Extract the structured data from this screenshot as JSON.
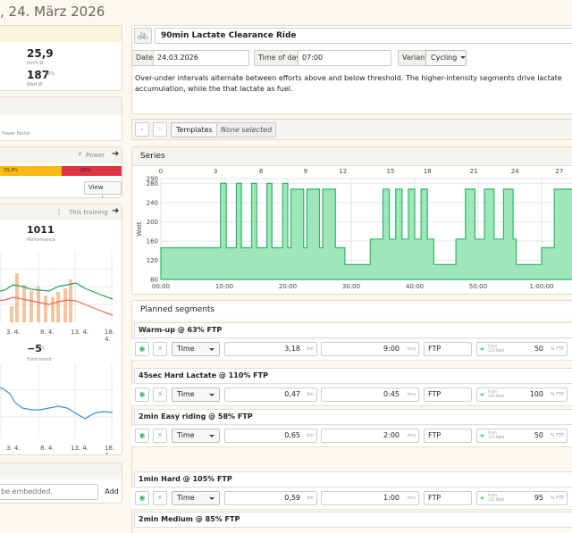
{
  "page": {
    "date_title": ", 24. März 2026"
  },
  "left": {
    "speed_value": "25,9",
    "speed_unit": "km/h Ø",
    "watt_value": "187",
    "watt_pct": "76%",
    "watt_unit": "Watt Ø",
    "power_factor_label": "Power Factor",
    "power_label": "Power",
    "zone_yellow_label": "33,3%",
    "zone_red_label": "20%",
    "view_week": "View week",
    "this_training": "This training",
    "performance_value": "1011",
    "performance_label": "Performance",
    "chart1_x_ticks": [
      "3. 4.",
      "8. 4.",
      "13. 4.",
      "18. 4."
    ],
    "form_value": "−5",
    "form_unit": "%",
    "form_label": "Form trend",
    "chart2_x_ticks": [
      "3. 4.",
      "8. 4.",
      "13. 4.",
      "18. 4."
    ],
    "embed_placeholder": "be embedded.",
    "add_label": "Add",
    "colors": {
      "yellow": "#f8b912",
      "red": "#dc3545",
      "bars": "#f7b990",
      "green_line": "#2d9e5a",
      "red_line": "#e46a57",
      "blue_line": "#3a8fd8"
    }
  },
  "workout": {
    "title": "90min Lactate Clearance Ride",
    "date_label": "Date",
    "date_value": "24.03.2026",
    "time_label": "Time of day",
    "time_value": "07:00",
    "variant_label": "Variant",
    "variant_value": "Cycling",
    "description": "Over-under intervals alternate between efforts above and below threshold. The higher-intensity segments drive lactate accumulation, while the that lactate as fuel.",
    "templates_label": "Templates",
    "templates_value": "None selected",
    "series_title": "Series",
    "planned_title": "Planned segments"
  },
  "chart_data": {
    "type": "area",
    "title": "Series",
    "ylabel": "Watt",
    "ylim": [
      80,
      290
    ],
    "y_ticks": [
      80,
      120,
      160,
      200,
      240,
      280,
      290
    ],
    "x_ticks": [
      "00:00",
      "10:00",
      "20:00",
      "30:00",
      "40:00",
      "50:00",
      "1:00:00"
    ],
    "top_ticks": [
      "0",
      "3",
      "6",
      "9",
      "12",
      "15",
      "18",
      "21",
      "24",
      "27"
    ],
    "x_range_min": [
      0,
      65
    ],
    "steps_min_watt": [
      [
        0,
        146
      ],
      [
        9.4,
        280
      ],
      [
        10.3,
        146
      ],
      [
        11.9,
        280
      ],
      [
        12.7,
        146
      ],
      [
        14.3,
        280
      ],
      [
        15.1,
        146
      ],
      [
        16.7,
        280
      ],
      [
        17.5,
        146
      ],
      [
        19.2,
        280
      ],
      [
        20.0,
        146
      ],
      [
        20.5,
        268
      ],
      [
        22.5,
        146
      ],
      [
        23.0,
        268
      ],
      [
        25.0,
        146
      ],
      [
        25.5,
        268
      ],
      [
        27.5,
        146
      ],
      [
        29.0,
        111
      ],
      [
        33.0,
        164
      ],
      [
        35.0,
        268
      ],
      [
        36.0,
        164
      ],
      [
        37.0,
        268
      ],
      [
        38.0,
        164
      ],
      [
        39.0,
        268
      ],
      [
        40.0,
        164
      ],
      [
        41.0,
        268
      ],
      [
        42.0,
        164
      ],
      [
        43.0,
        111
      ],
      [
        46.5,
        164
      ],
      [
        48.0,
        268
      ],
      [
        49.5,
        164
      ],
      [
        51.0,
        268
      ],
      [
        52.5,
        164
      ],
      [
        54.0,
        268
      ],
      [
        55.5,
        164
      ],
      [
        56.0,
        111
      ],
      [
        60.0,
        146
      ],
      [
        62.0,
        268
      ],
      [
        65.0,
        268
      ]
    ],
    "grid": true
  },
  "segments": [
    {
      "title": "Warm-up @ 63% FTP",
      "type": "Time",
      "distance": "3,18",
      "dist_unit": "km",
      "duration": "9:00",
      "dur_unit": "m:s",
      "ref": "FTP",
      "from_label": "From",
      "from_watt": "123 Watt",
      "pct": "50",
      "pct_unit": "% FTP"
    },
    {
      "title": "45sec Hard Lactate @ 110% FTP",
      "type": "Time",
      "distance": "0,47",
      "dist_unit": "km",
      "duration": "0:45",
      "dur_unit": "m:s",
      "ref": "FTP",
      "from_label": "From",
      "from_watt": "245 Watt",
      "pct": "100",
      "pct_unit": "% FTP"
    },
    {
      "title": "2min Easy riding @ 58% FTP",
      "type": "Time",
      "distance": "0,65",
      "dist_unit": "km",
      "duration": "2:00",
      "dur_unit": "m:s",
      "ref": "FTP",
      "from_label": "From",
      "from_watt": "123 Watt",
      "pct": "50",
      "pct_unit": "% FTP"
    },
    {
      "title": "1min Hard @ 105% FTP",
      "type": "Time",
      "distance": "0,59",
      "dist_unit": "km",
      "duration": "1:00",
      "dur_unit": "m:s",
      "ref": "FTP",
      "from_label": "From",
      "from_watt": "232 Watt",
      "pct": "95",
      "pct_unit": "% FTP"
    },
    {
      "title": "2min Medium @ 85% FTP"
    }
  ]
}
